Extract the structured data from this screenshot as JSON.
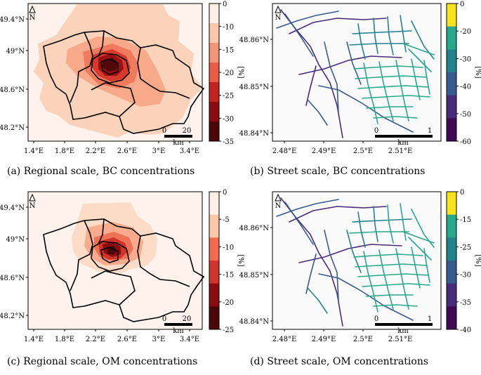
{
  "chart_data": [
    {
      "type": "heatmap",
      "panel": "a",
      "caption": "(a) Regional scale, BC concentrations",
      "x_ticks": [
        "1.4°E",
        "1.8°E",
        "2.2°E",
        "2.6°E",
        "3°E",
        "3.4°E"
      ],
      "y_ticks": [
        "49.4°N",
        "49°N",
        "48.6°N",
        "48.2°N"
      ],
      "colorbar": {
        "ticks": [
          "0",
          "-10",
          "-15",
          "-20",
          "-25",
          "-30",
          "-35"
        ],
        "label": "[%]",
        "colors": [
          "#fdf0e6",
          "#fbc8ab",
          "#f59578",
          "#e95c46",
          "#c42421",
          "#8a0b10",
          "#4a0707"
        ]
      },
      "north": "N",
      "scale_bar": {
        "label": "km",
        "start": "0",
        "end": "20"
      }
    },
    {
      "type": "heatmap",
      "panel": "b",
      "caption": "(b) Street scale, BC concentrations",
      "x_ticks": [
        "2.48°E",
        "2.49°E",
        "2.5°E",
        "2.51°E"
      ],
      "y_ticks": [
        "48.86°N",
        "48.85°N",
        "48.84°N"
      ],
      "colorbar": {
        "ticks": [
          "0",
          "-20",
          "-30",
          "-40",
          "-50",
          "-60"
        ],
        "label": "[%]",
        "colors": [
          "#f6e21e",
          "#27a88a",
          "#22838d",
          "#375b8c",
          "#482b7a",
          "#3f0a54"
        ]
      },
      "north": "N",
      "scale_bar": {
        "label": "km",
        "start": "0",
        "end": "1"
      }
    },
    {
      "type": "heatmap",
      "panel": "c",
      "caption": "(c) Regional scale, OM concentrations",
      "x_ticks": [
        "1.4°E",
        "1.8°E",
        "2.2°E",
        "2.6°E",
        "3°E",
        "3.4°E"
      ],
      "y_ticks": [
        "49.4°N",
        "49°N",
        "48.6°N",
        "48.2°N"
      ],
      "colorbar": {
        "ticks": [
          "0",
          "-5",
          "-10",
          "-15",
          "-20",
          "-25"
        ],
        "label": "[%]",
        "colors": [
          "#fdf0e6",
          "#fbc8ab",
          "#f26a4f",
          "#d1342a",
          "#8a0b10",
          "#4a0707"
        ]
      },
      "north": "N",
      "scale_bar": {
        "label": "km",
        "start": "0",
        "end": "20"
      }
    },
    {
      "type": "heatmap",
      "panel": "d",
      "caption": "(d) Street scale, OM concentrations",
      "x_ticks": [
        "2.48°E",
        "2.49°E",
        "2.5°E",
        "2.51°E"
      ],
      "y_ticks": [
        "48.86°N",
        "48.85°N",
        "48.84°N"
      ],
      "colorbar": {
        "ticks": [
          "0",
          "-15",
          "-25",
          "-30",
          "-35",
          "-40"
        ],
        "label": "[%]",
        "colors": [
          "#f6e21e",
          "#27a88a",
          "#22838d",
          "#375b8c",
          "#482b7a",
          "#3f0a54"
        ]
      },
      "north": "N",
      "scale_bar": {
        "label": "km",
        "start": "0",
        "end": "1"
      }
    }
  ]
}
